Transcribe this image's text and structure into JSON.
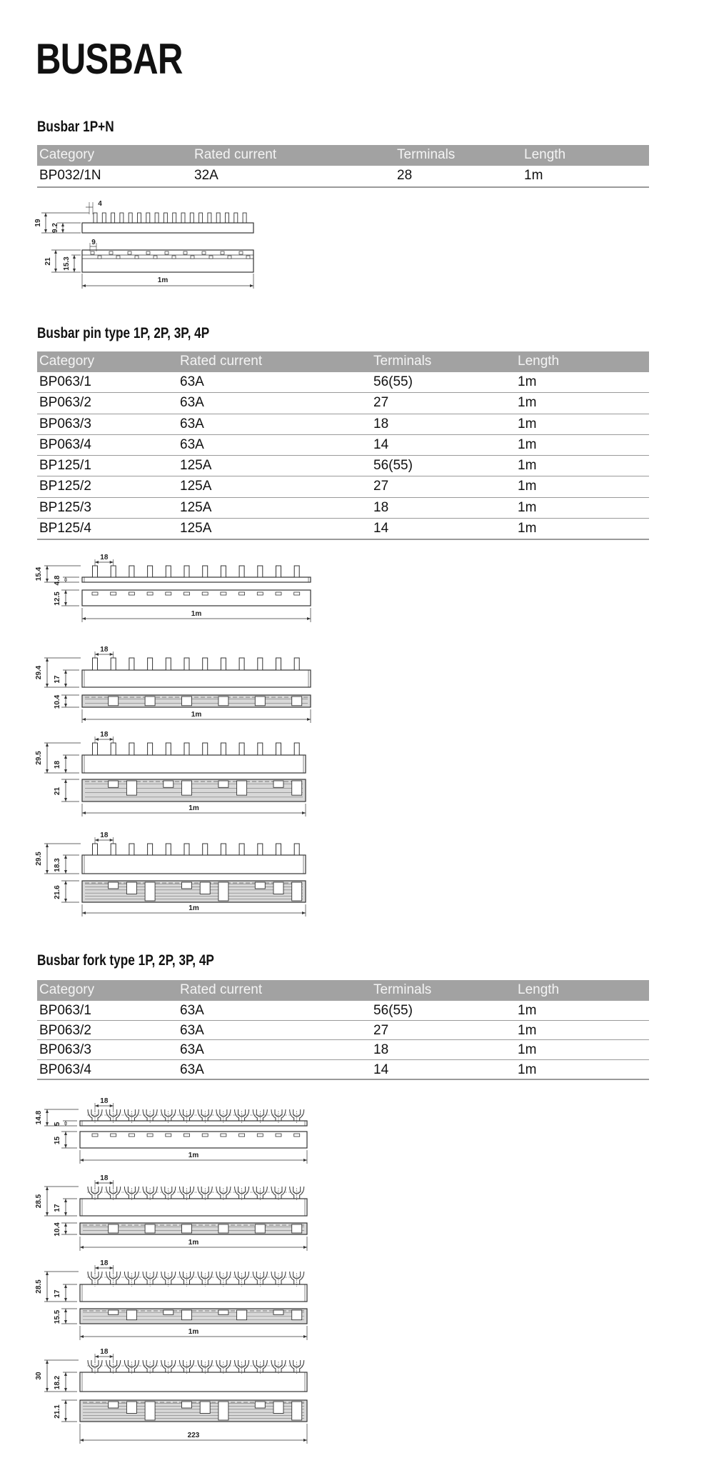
{
  "title": "BUSBAR",
  "sections": [
    {
      "heading": "Busbar 1P+N",
      "columns": [
        "Category",
        "Rated current",
        "Terminals",
        "Length"
      ],
      "rows": [
        [
          "BP032/1N",
          "32A",
          "28",
          "1m"
        ]
      ]
    },
    {
      "heading": "Busbar pin type 1P, 2P, 3P, 4P",
      "columns": [
        "Category",
        "Rated current",
        "Terminals",
        "Length"
      ],
      "rows": [
        [
          "BP063/1",
          "63A",
          "56(55)",
          "1m"
        ],
        [
          "BP063/2",
          "63A",
          "27",
          "1m"
        ],
        [
          "BP063/3",
          "63A",
          "18",
          "1m"
        ],
        [
          "BP063/4",
          "63A",
          "14",
          "1m"
        ],
        [
          "BP125/1",
          "125A",
          "56(55)",
          "1m"
        ],
        [
          "BP125/2",
          "125A",
          "27",
          "1m"
        ],
        [
          "BP125/3",
          "125A",
          "18",
          "1m"
        ],
        [
          "BP125/4",
          "125A",
          "14",
          "1m"
        ]
      ]
    },
    {
      "heading": "Busbar fork type 1P, 2P, 3P, 4P",
      "columns": [
        "Category",
        "Rated current",
        "Terminals",
        "Length"
      ],
      "rows": [
        [
          "BP063/1",
          "63A",
          "56(55)",
          "1m"
        ],
        [
          "BP063/2",
          "63A",
          "27",
          "1m"
        ],
        [
          "BP063/3",
          "63A",
          "18",
          "1m"
        ],
        [
          "BP063/4",
          "63A",
          "14",
          "1m"
        ]
      ]
    }
  ],
  "drawings": {
    "d1pn": {
      "pitch": "4",
      "total": "19",
      "bar": "9.2",
      "bottom_pitch": "9",
      "bottom_total": "21",
      "bottom": "15.3",
      "length": "1m"
    },
    "pin": [
      {
        "pitch": "18",
        "total": "15.4",
        "bar": "4.8",
        "bottom": "12.5",
        "length": "1m"
      },
      {
        "pitch": "18",
        "total": "29.4",
        "bar": "17",
        "bottom": "10.4",
        "length": "1m"
      },
      {
        "pitch": "18",
        "total": "29.5",
        "bar": "18",
        "bottom": "21",
        "length": "1m"
      },
      {
        "pitch": "18",
        "total": "29.5",
        "bar": "18.3",
        "bottom": "21.6",
        "length": "1m"
      }
    ],
    "fork": [
      {
        "pitch": "18",
        "total": "14.8",
        "bar": "5",
        "bottom": "15",
        "length": "1m"
      },
      {
        "pitch": "18",
        "total": "28.5",
        "bar": "17",
        "bottom": "10.4",
        "length": "1m"
      },
      {
        "pitch": "18",
        "total": "28.5",
        "bar": "17",
        "bottom": "15.5",
        "length": "1m"
      },
      {
        "pitch": "18",
        "total": "30",
        "bar": "18.2",
        "bottom": "21.1",
        "length": "223"
      }
    ]
  },
  "colors": {
    "header_bg": "#a2a2a2",
    "header_text": "#f4f4f4",
    "rule": "#9a9a9a"
  }
}
